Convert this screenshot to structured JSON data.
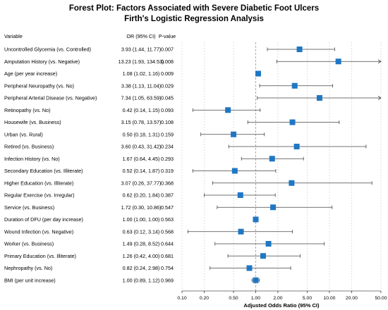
{
  "chart_data": {
    "type": "forest",
    "title": "Forest Plot: Factors Associated with Severe Diabetic Foot Ulcers",
    "subtitle": "Firth's Logistic Regression Analysis",
    "column_headers": {
      "variable": "Variable",
      "or_ci": "OR (95% CI)",
      "p": "P-value"
    },
    "xlabel": "Adjusted Odds Ratio (95% CI)",
    "x_scale": "log",
    "xlim": [
      0.1,
      50
    ],
    "x_ticks": [
      {
        "value": 0.1,
        "label": "0.10"
      },
      {
        "value": 0.2,
        "label": "0.20"
      },
      {
        "value": 0.5,
        "label": "0.50"
      },
      {
        "value": 1,
        "label": "1.00"
      },
      {
        "value": 2,
        "label": "2.00"
      },
      {
        "value": 5,
        "label": "5.00"
      },
      {
        "value": 10,
        "label": "10.00"
      },
      {
        "value": 20,
        "label": "20.00"
      },
      {
        "value": 50,
        "label": "50.00"
      }
    ],
    "reference_line": 1,
    "colors": {
      "marker": "#1f77c4",
      "line": "#444444",
      "grid": "#cccccc"
    },
    "rows": [
      {
        "variable": "Uncontrolled Glycemia (vs. Controlled)",
        "or_ci": "3.93 (1.44, 11.77)",
        "p": "0.007",
        "or": 3.93,
        "lo": 1.44,
        "hi": 11.77
      },
      {
        "variable": "Amputation History (vs. Negative)",
        "or_ci": "13.23 (1.93, 134.53)",
        "p": "0.008",
        "or": 13.23,
        "lo": 1.93,
        "hi": 134.53
      },
      {
        "variable": "Age (per year increase)",
        "or_ci": "1.08 (1.02, 1.16)",
        "p": "0.009",
        "or": 1.08,
        "lo": 1.02,
        "hi": 1.16
      },
      {
        "variable": "Peripheral Neuropathy (vs. No)",
        "or_ci": "3.38 (1.13, 11.04)",
        "p": "0.029",
        "or": 3.38,
        "lo": 1.13,
        "hi": 11.04
      },
      {
        "variable": "Peripheral Arterial Disease (vs. Negative)",
        "or_ci": "7.34 (1.05, 63.59)",
        "p": "0.045",
        "or": 7.34,
        "lo": 1.05,
        "hi": 63.59
      },
      {
        "variable": "Retinopathy (vs. No)",
        "or_ci": "0.42 (0.14, 1.15)",
        "p": "0.093",
        "or": 0.42,
        "lo": 0.14,
        "hi": 1.15
      },
      {
        "variable": "Housewife (vs. Business)",
        "or_ci": "3.15 (0.78, 13.57)",
        "p": "0.108",
        "or": 3.15,
        "lo": 0.78,
        "hi": 13.57
      },
      {
        "variable": "Urban (vs. Rural)",
        "or_ci": "0.50 (0.18, 1.31)",
        "p": "0.159",
        "or": 0.5,
        "lo": 0.18,
        "hi": 1.31
      },
      {
        "variable": "Retired (vs. Business)",
        "or_ci": "3.60 (0.43, 31.42)",
        "p": "0.234",
        "or": 3.6,
        "lo": 0.43,
        "hi": 31.42
      },
      {
        "variable": "Infection History (vs. No)",
        "or_ci": "1.67 (0.64, 4.45)",
        "p": "0.293",
        "or": 1.67,
        "lo": 0.64,
        "hi": 4.45
      },
      {
        "variable": "Secondary Education (vs. Illiterate)",
        "or_ci": "0.52 (0.14, 1.87)",
        "p": "0.319",
        "or": 0.52,
        "lo": 0.14,
        "hi": 1.87
      },
      {
        "variable": "Higher Education (vs. Illiterate)",
        "or_ci": "3.07 (0.26, 37.77)",
        "p": "0.368",
        "or": 3.07,
        "lo": 0.26,
        "hi": 37.77
      },
      {
        "variable": "Regular Exercise (vs. Irregular)",
        "or_ci": "0.62 (0.20, 1.84)",
        "p": "0.387",
        "or": 0.62,
        "lo": 0.2,
        "hi": 1.84
      },
      {
        "variable": "Service (vs. Business)",
        "or_ci": "1.72 (0.30, 10.86)",
        "p": "0.547",
        "or": 1.72,
        "lo": 0.3,
        "hi": 10.86
      },
      {
        "variable": "Duration of DFU (per day increase)",
        "or_ci": "1.00 (1.00, 1.00)",
        "p": "0.563",
        "or": 1.0,
        "lo": 1.0,
        "hi": 1.0
      },
      {
        "variable": "Wound Infection (vs. Negative)",
        "or_ci": "0.63 (0.12, 3.14)",
        "p": "0.568",
        "or": 0.63,
        "lo": 0.12,
        "hi": 3.14
      },
      {
        "variable": "Worker (vs. Business)",
        "or_ci": "1.49 (0.28, 8.52)",
        "p": "0.644",
        "or": 1.49,
        "lo": 0.28,
        "hi": 8.52
      },
      {
        "variable": "Primary Education (vs. Illiterate)",
        "or_ci": "1.26 (0.42, 4.00)",
        "p": "0.681",
        "or": 1.26,
        "lo": 0.42,
        "hi": 4.0
      },
      {
        "variable": "Nephropathy (vs. No)",
        "or_ci": "0.82 (0.24, 2.98)",
        "p": "0.754",
        "or": 0.82,
        "lo": 0.24,
        "hi": 2.98
      },
      {
        "variable": "BMI (per unit increase)",
        "or_ci": "1.00 (0.89, 1.12)",
        "p": "0.969",
        "or": 1.0,
        "lo": 0.89,
        "hi": 1.12
      }
    ]
  }
}
